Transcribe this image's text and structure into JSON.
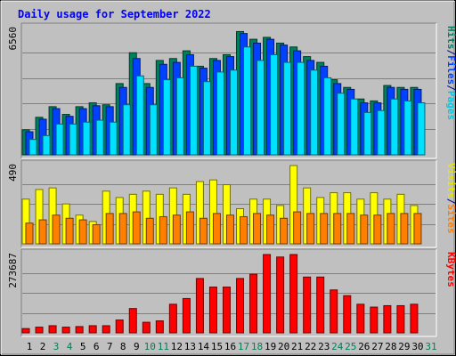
{
  "chart_data": {
    "type": "bar",
    "title": "Daily usage for September 2022",
    "days": [
      "1",
      "2",
      "3",
      "4",
      "5",
      "6",
      "7",
      "8",
      "9",
      "10",
      "11",
      "12",
      "13",
      "14",
      "15",
      "16",
      "17",
      "18",
      "19",
      "20",
      "21",
      "22",
      "23",
      "24",
      "25",
      "26",
      "27",
      "28",
      "29",
      "30",
      "31"
    ],
    "weekend_days": [
      "3",
      "4",
      "10",
      "11",
      "17",
      "18",
      "24",
      "25",
      "31"
    ],
    "panels": [
      {
        "name": "hits-files-pages",
        "max_label": "6560",
        "ylim": [
          0,
          6560
        ],
        "axis_labels": [
          {
            "text": "Pages",
            "color": "#00c8e6"
          },
          {
            "text": "/",
            "color": "#000080"
          },
          {
            "text": "Files",
            "color": "#0040ff"
          },
          {
            "text": "/",
            "color": "#000080"
          },
          {
            "text": "Hits",
            "color": "#008060"
          }
        ],
        "series": [
          {
            "name": "Hits",
            "color": "#00805a",
            "values": [
              1300,
              1950,
              2500,
              2100,
              2500,
              2700,
              2600,
              3700,
              5300,
              3700,
              4900,
              5000,
              5400,
              4600,
              5000,
              5200,
              6400,
              6000,
              6100,
              5800,
              5600,
              5100,
              4800,
              3900,
              3500,
              2900,
              2800,
              3600,
              3500,
              3500,
              null
            ]
          },
          {
            "name": "Files",
            "color": "#0040ff",
            "values": [
              1200,
              1850,
              2400,
              2000,
              2400,
              2550,
              2500,
              3500,
              5000,
              3500,
              4700,
              4800,
              5200,
              4500,
              4900,
              5100,
              6300,
              5800,
              6000,
              5700,
              5400,
              4900,
              4600,
              3700,
              3400,
              2700,
              2700,
              3500,
              3400,
              3400,
              null
            ]
          },
          {
            "name": "Pages",
            "color": "#00e0ff",
            "values": [
              800,
              1000,
              1600,
              1600,
              1700,
              1800,
              1700,
              2600,
              4100,
              2600,
              3900,
              4000,
              4600,
              3800,
              4300,
              4400,
              5600,
              4900,
              5200,
              4800,
              4800,
              4400,
              4000,
              3200,
              2900,
              2200,
              2300,
              2900,
              2800,
              2700,
              null
            ]
          }
        ]
      },
      {
        "name": "visits-sites",
        "max_label": "490",
        "ylim": [
          0,
          490
        ],
        "axis_labels": [
          {
            "text": "Sites",
            "color": "#ff8000"
          },
          {
            "text": "/",
            "color": "#000080"
          },
          {
            "text": "Visits",
            "color": "#e6e600"
          }
        ],
        "series": [
          {
            "name": "Visits",
            "color": "#ffff00",
            "values": [
              280,
              340,
              350,
              250,
              180,
              140,
              330,
              290,
              310,
              330,
              310,
              350,
              310,
              390,
              400,
              370,
              220,
              280,
              280,
              240,
              490,
              350,
              290,
              320,
              320,
              280,
              320,
              280,
              310,
              240,
              null
            ]
          },
          {
            "name": "Sites",
            "color": "#ff8000",
            "values": [
              130,
              150,
              180,
              160,
              150,
              120,
              190,
              190,
              200,
              160,
              170,
              180,
              200,
              160,
              190,
              180,
              170,
              190,
              180,
              160,
              200,
              190,
              190,
              190,
              190,
              180,
              180,
              190,
              190,
              190,
              null
            ]
          }
        ]
      },
      {
        "name": "kbytes",
        "max_label": "273687",
        "ylim": [
          0,
          273687
        ],
        "axis_labels": [
          {
            "text": "KBytes",
            "color": "#ff0000"
          }
        ],
        "series": [
          {
            "name": "KBytes",
            "color": "#ff0000",
            "values": [
              15000,
              20000,
              25000,
              20000,
              22000,
              25000,
              25000,
              45000,
              85000,
              37000,
              42000,
              100000,
              120000,
              190000,
              160000,
              160000,
              190000,
              205000,
              273687,
              265000,
              273687,
              195000,
              195000,
              150000,
              130000,
              100000,
              90000,
              95000,
              95000,
              100000,
              null
            ]
          }
        ]
      }
    ]
  }
}
